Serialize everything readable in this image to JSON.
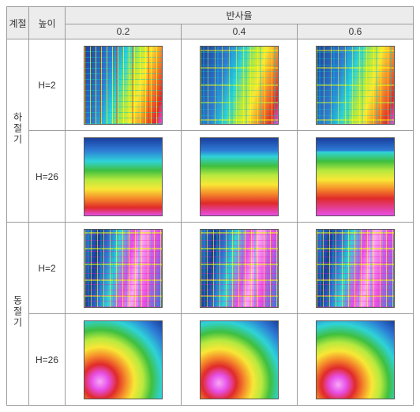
{
  "headers": {
    "season": "계절",
    "height": "높이",
    "reflectance": "반사율",
    "r1": "0.2",
    "r2": "0.4",
    "r3": "0.6"
  },
  "seasons": {
    "summer": "하절기",
    "winter": "동절기"
  },
  "heights": {
    "h2": "H=2",
    "h26": "H=26"
  },
  "colors": {
    "deepblue": "#1a3f9e",
    "blue": "#2e7bd6",
    "cyan": "#2fd3d8",
    "green": "#3fbf3f",
    "yellowgreen": "#b7e93f",
    "yellow": "#f8e736",
    "orange": "#f58a2a",
    "red": "#e02a2a",
    "magenta": "#e74fe7",
    "pink": "#f7a8f7"
  },
  "plots": {
    "summer_h2": {
      "type": "heatmap",
      "style": "street_summer",
      "base_left": "#1a5fb4",
      "base_right": "#e02a2a"
    },
    "summer_h26": {
      "type": "heatmap",
      "style": "smooth",
      "bands": [
        "#e74fe7",
        "#e02a2a",
        "#f58a2a",
        "#f8e736",
        "#b7e93f",
        "#3fbf3f",
        "#2fd3d8",
        "#2e7bd6",
        "#1a3f9e"
      ]
    },
    "winter_h2": {
      "type": "heatmap",
      "style": "street_winter",
      "base": "#2e7bd6",
      "streets": "#e74fe7"
    },
    "winter_h26": {
      "type": "heatmap",
      "style": "radial",
      "center": "#f7a8f7",
      "bands": [
        "#e74fe7",
        "#e02a2a",
        "#f58a2a",
        "#f8e736",
        "#b7e93f",
        "#3fbf3f",
        "#2fd3d8",
        "#2e7bd6",
        "#1a3f9e"
      ]
    }
  }
}
